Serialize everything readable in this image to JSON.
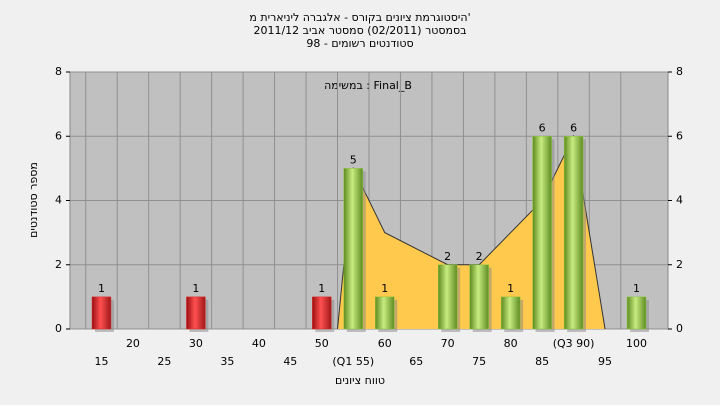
{
  "chart_data": {
    "type": "bar",
    "title": [
      "היסטוגרמת ציונים בקורס - אלגברה ליניארית מ'",
      "בסמסטר (02/2011) סמסטר אביב 2011/12",
      "סטודנטים רשומים - 98"
    ],
    "annotation": "במשימה : Final_B",
    "xlabel": "טווח ציונים",
    "ylabel": "מספר סטודנטים",
    "xlim": [
      10,
      105
    ],
    "xticks": [
      15,
      20,
      25,
      30,
      35,
      40,
      45,
      50,
      {
        "value": 55,
        "label": "(Q1 55)"
      },
      60,
      65,
      70,
      75,
      80,
      85,
      {
        "value": 90,
        "label": "(Q3 90)"
      },
      95,
      100
    ],
    "ylim": [
      0,
      8
    ],
    "yticks": [
      0,
      2,
      4,
      6,
      8
    ],
    "y2lim": [
      0,
      8
    ],
    "y2ticks": [
      0,
      2,
      4,
      6,
      8
    ],
    "grid": true,
    "series": [
      {
        "color": "#e02828",
        "x": [
          15,
          30,
          50
        ],
        "values": [
          1,
          1,
          1
        ]
      },
      {
        "color": "#8cc63f",
        "x": [
          55,
          60,
          70,
          75,
          80,
          85,
          90,
          100
        ],
        "values": [
          5,
          1,
          2,
          2,
          1,
          6,
          6,
          1
        ]
      }
    ],
    "curve": {
      "color": "#ffc94d",
      "x": [
        52.5,
        55,
        60,
        70,
        75,
        85,
        90,
        95
      ],
      "values": [
        0,
        5,
        3,
        2,
        2,
        4,
        6,
        0
      ]
    }
  }
}
